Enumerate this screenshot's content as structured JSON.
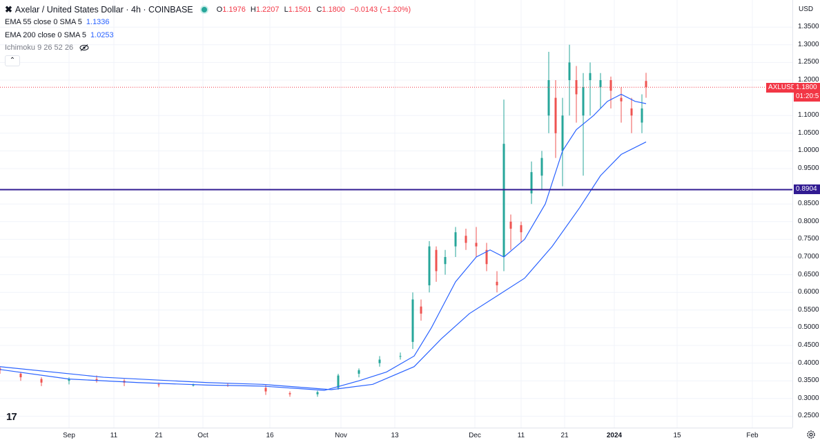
{
  "header": {
    "symbol_icon": "axelar-x-icon",
    "title": "Axelar / United States Dollar · 4h · COINBASE",
    "status_color": "#26a69a",
    "ohlc": {
      "o_label": "O",
      "o": "1.1976",
      "h_label": "H",
      "h": "1.2207",
      "l_label": "L",
      "l": "1.1501",
      "c_label": "C",
      "c": "1.1800",
      "change": "−0.0143 (−1.20%)"
    }
  },
  "indicators": [
    {
      "label": "EMA 55 close 0 SMA 5",
      "value": "1.1336"
    },
    {
      "label": "EMA 200 close 0 SMA 5",
      "value": "1.0253"
    },
    {
      "label": "Ichimoku 9 26 52 26",
      "value": ""
    }
  ],
  "price_axis": {
    "currency": "USD",
    "ticks": [
      "1.3500",
      "1.3000",
      "1.2500",
      "1.2000",
      "1.1000",
      "1.0500",
      "1.0000",
      "0.9500",
      "0.8500",
      "0.8000",
      "0.7500",
      "0.7000",
      "0.6500",
      "0.6000",
      "0.5500",
      "0.5000",
      "0.4500",
      "0.4000",
      "0.3500",
      "0.3000",
      "0.2500"
    ]
  },
  "badges": {
    "symbol": "AXLUSD",
    "price": "1.1800",
    "countdown": "01:20:5",
    "level": "0.8904",
    "price_color": "#f23645",
    "level_color": "#311b92"
  },
  "time_axis": [
    "Sep",
    "11",
    "21",
    "Oct",
    "16",
    "Nov",
    "13",
    "Dec",
    "11",
    "21",
    "2024",
    "15",
    "Feb"
  ],
  "logo": "17",
  "chart_data": {
    "type": "line",
    "title": "Axelar / United States Dollar · 4h · COINBASE",
    "x": [
      "Sep",
      "11",
      "21",
      "Oct",
      "16",
      "Nov",
      "13",
      "Dec",
      "11",
      "21",
      "2024",
      "15",
      "Feb"
    ],
    "ylim": [
      0.23,
      1.4
    ],
    "horizontal_line": 0.8904,
    "last_price": 1.18,
    "series": [
      {
        "name": "EMA 55 close 0 SMA 5",
        "color": "#2962ff",
        "points": [
          [
            0,
            0.382
          ],
          [
            100,
            0.355
          ],
          [
            200,
            0.345
          ],
          [
            300,
            0.338
          ],
          [
            380,
            0.335
          ],
          [
            470,
            0.323
          ],
          [
            520,
            0.35
          ],
          [
            560,
            0.375
          ],
          [
            600,
            0.42
          ],
          [
            625,
            0.5
          ],
          [
            660,
            0.63
          ],
          [
            690,
            0.7
          ],
          [
            710,
            0.72
          ],
          [
            730,
            0.7
          ],
          [
            760,
            0.75
          ],
          [
            790,
            0.85
          ],
          [
            815,
            1.0
          ],
          [
            835,
            1.06
          ],
          [
            860,
            1.1
          ],
          [
            880,
            1.14
          ],
          [
            900,
            1.16
          ],
          [
            920,
            1.14
          ],
          [
            936,
            1.1336
          ]
        ]
      },
      {
        "name": "EMA 200 close 0 SMA 5",
        "color": "#2962ff",
        "points": [
          [
            0,
            0.39
          ],
          [
            150,
            0.36
          ],
          [
            300,
            0.345
          ],
          [
            380,
            0.34
          ],
          [
            480,
            0.325
          ],
          [
            540,
            0.34
          ],
          [
            600,
            0.39
          ],
          [
            640,
            0.47
          ],
          [
            680,
            0.54
          ],
          [
            720,
            0.59
          ],
          [
            760,
            0.64
          ],
          [
            800,
            0.73
          ],
          [
            840,
            0.84
          ],
          [
            870,
            0.93
          ],
          [
            900,
            0.99
          ],
          [
            936,
            1.0253
          ]
        ]
      }
    ],
    "candles": [
      [
        0,
        0.385,
        0.38,
        0.39,
        0.37
      ],
      [
        30,
        0.37,
        0.36,
        0.375,
        0.35
      ],
      [
        60,
        0.355,
        0.345,
        0.36,
        0.335
      ],
      [
        100,
        0.35,
        0.355,
        0.36,
        0.34
      ],
      [
        140,
        0.355,
        0.35,
        0.365,
        0.345
      ],
      [
        180,
        0.35,
        0.345,
        0.355,
        0.335
      ],
      [
        230,
        0.34,
        0.338,
        0.345,
        0.332
      ],
      [
        280,
        0.338,
        0.338,
        0.342,
        0.334
      ],
      [
        330,
        0.338,
        0.337,
        0.342,
        0.333
      ],
      [
        385,
        0.33,
        0.32,
        0.338,
        0.31
      ],
      [
        420,
        0.315,
        0.312,
        0.32,
        0.305
      ],
      [
        460,
        0.312,
        0.318,
        0.322,
        0.305
      ],
      [
        490,
        0.33,
        0.365,
        0.37,
        0.325
      ],
      [
        520,
        0.37,
        0.38,
        0.385,
        0.36
      ],
      [
        550,
        0.4,
        0.41,
        0.42,
        0.39
      ],
      [
        580,
        0.42,
        0.42,
        0.43,
        0.41
      ],
      [
        598,
        0.46,
        0.58,
        0.6,
        0.44
      ],
      [
        610,
        0.56,
        0.54,
        0.58,
        0.52
      ],
      [
        622,
        0.62,
        0.73,
        0.745,
        0.6
      ],
      [
        632,
        0.72,
        0.66,
        0.73,
        0.63
      ],
      [
        645,
        0.68,
        0.7,
        0.72,
        0.65
      ],
      [
        660,
        0.73,
        0.77,
        0.785,
        0.7
      ],
      [
        675,
        0.76,
        0.74,
        0.78,
        0.72
      ],
      [
        690,
        0.74,
        0.73,
        0.785,
        0.7
      ],
      [
        705,
        0.72,
        0.68,
        0.74,
        0.66
      ],
      [
        720,
        0.63,
        0.62,
        0.66,
        0.6
      ],
      [
        730,
        0.7,
        1.02,
        1.145,
        0.66
      ],
      [
        740,
        0.8,
        0.78,
        0.82,
        0.72
      ],
      [
        755,
        0.79,
        0.77,
        0.8,
        0.74
      ],
      [
        770,
        0.88,
        0.94,
        0.97,
        0.85
      ],
      [
        785,
        0.93,
        0.98,
        1.0,
        0.89
      ],
      [
        795,
        1.1,
        1.2,
        1.28,
        1.05
      ],
      [
        805,
        1.15,
        1.05,
        1.2,
        0.98
      ],
      [
        815,
        1.0,
        1.1,
        1.15,
        0.9
      ],
      [
        825,
        1.2,
        1.25,
        1.3,
        1.1
      ],
      [
        835,
        1.2,
        1.16,
        1.24,
        1.08
      ],
      [
        845,
        1.1,
        1.18,
        1.22,
        0.93
      ],
      [
        855,
        1.2,
        1.22,
        1.25,
        1.1
      ],
      [
        870,
        1.18,
        1.2,
        1.22,
        1.12
      ],
      [
        885,
        1.2,
        1.17,
        1.21,
        1.12
      ],
      [
        900,
        1.15,
        1.14,
        1.18,
        1.08
      ],
      [
        915,
        1.12,
        1.1,
        1.15,
        1.05
      ],
      [
        930,
        1.08,
        1.12,
        1.16,
        1.05
      ],
      [
        936,
        1.1976,
        1.18,
        1.2207,
        1.1501
      ]
    ]
  }
}
